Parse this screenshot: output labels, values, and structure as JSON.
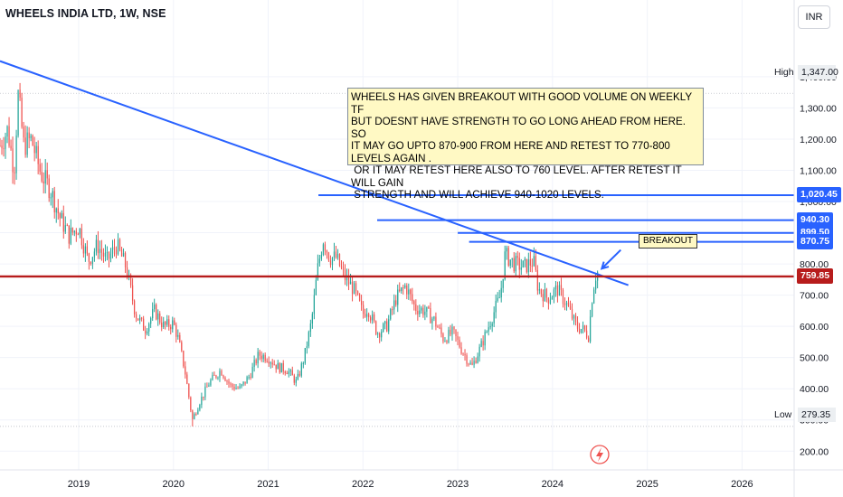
{
  "header": {
    "title": "WHEELS INDIA LTD, 1W, NSE",
    "currency": "INR"
  },
  "annotations": {
    "note": "WHEELS HAS GIVEN BREAKOUT WITH GOOD VOLUME ON WEEKLY TF\nBUT DOESNT HAVE STRENGTH TO GO LONG AHEAD FROM HERE. SO\nIT MAY GO UPTO 870-900 FROM HERE AND RETEST TO 770-800 LEVELS AGAIN .\n OR IT MAY RETEST HERE ALSO TO 760 LEVEL. AFTER RETEST IT WILL GAIN\n STRENGTH AND WILL ACHIEVE 940-1020 LEVELS.",
    "breakout_label": "BREAKOUT"
  },
  "price_scale": {
    "high_label": "High",
    "high_value": "1,347.00",
    "low_label": "Low",
    "low_value": "279.35",
    "tags": [
      {
        "value": 1020.45,
        "label": "1,020.45",
        "color": "#2962ff"
      },
      {
        "value": 940.3,
        "label": "940.30",
        "color": "#2962ff"
      },
      {
        "value": 899.5,
        "label": "899.50",
        "color": "#2962ff"
      },
      {
        "value": 870.75,
        "label": "870.75",
        "color": "#2962ff"
      },
      {
        "value": 759.85,
        "label": "759.85",
        "color": "#b71c1c"
      }
    ]
  },
  "chart_data": {
    "type": "candlestick",
    "x_type": "date",
    "y_ticks": [
      200,
      300,
      400,
      500,
      600,
      700,
      800,
      900,
      1000,
      1100,
      1200,
      1300,
      1400
    ],
    "y_tick_labels": [
      "200.00",
      "300.00",
      "400.00",
      "500.00",
      "600.00",
      "700.00",
      "800.00",
      "900.00",
      "1,000.00",
      "1,100.00",
      "1,200.00",
      "1,300.00",
      "1,400.00"
    ],
    "ylim": [
      140,
      1530
    ],
    "x_tick_labels": [
      "2019",
      "2020",
      "2021",
      "2022",
      "2023",
      "2024",
      "2025",
      "2026"
    ],
    "x_ticks": [
      2019.0,
      2020.0,
      2021.0,
      2022.0,
      2023.0,
      2024.0,
      2025.0,
      2026.0
    ],
    "xlim": [
      2018.17,
      2026.55
    ],
    "up_color": "#26a69a",
    "down_color": "#ef5350",
    "price_path": [
      [
        2018.17,
        1180
      ],
      [
        2018.25,
        1230
      ],
      [
        2018.32,
        1100
      ],
      [
        2018.36,
        1347
      ],
      [
        2018.42,
        1180
      ],
      [
        2018.5,
        1200
      ],
      [
        2018.6,
        1090
      ],
      [
        2018.7,
        1040
      ],
      [
        2018.8,
        950
      ],
      [
        2018.9,
        890
      ],
      [
        2019.0,
        920
      ],
      [
        2019.1,
        810
      ],
      [
        2019.2,
        860
      ],
      [
        2019.3,
        810
      ],
      [
        2019.4,
        860
      ],
      [
        2019.5,
        790
      ],
      [
        2019.6,
        640
      ],
      [
        2019.7,
        590
      ],
      [
        2019.8,
        650
      ],
      [
        2019.9,
        600
      ],
      [
        2020.0,
        610
      ],
      [
        2020.05,
        560
      ],
      [
        2020.12,
        460
      ],
      [
        2020.2,
        300
      ],
      [
        2020.28,
        360
      ],
      [
        2020.38,
        420
      ],
      [
        2020.5,
        460
      ],
      [
        2020.6,
        410
      ],
      [
        2020.7,
        400
      ],
      [
        2020.8,
        440
      ],
      [
        2020.9,
        510
      ],
      [
        2021.0,
        500
      ],
      [
        2021.1,
        470
      ],
      [
        2021.2,
        460
      ],
      [
        2021.3,
        420
      ],
      [
        2021.38,
        500
      ],
      [
        2021.46,
        620
      ],
      [
        2021.52,
        780
      ],
      [
        2021.58,
        880
      ],
      [
        2021.65,
        820
      ],
      [
        2021.72,
        820
      ],
      [
        2021.8,
        760
      ],
      [
        2021.9,
        720
      ],
      [
        2022.0,
        640
      ],
      [
        2022.05,
        660
      ],
      [
        2022.15,
        580
      ],
      [
        2022.25,
        600
      ],
      [
        2022.35,
        690
      ],
      [
        2022.45,
        730
      ],
      [
        2022.55,
        660
      ],
      [
        2022.65,
        650
      ],
      [
        2022.75,
        620
      ],
      [
        2022.85,
        560
      ],
      [
        2022.95,
        580
      ],
      [
        2023.05,
        520
      ],
      [
        2023.15,
        470
      ],
      [
        2023.25,
        540
      ],
      [
        2023.35,
        620
      ],
      [
        2023.45,
        700
      ],
      [
        2023.5,
        830
      ],
      [
        2023.6,
        800
      ],
      [
        2023.7,
        790
      ],
      [
        2023.8,
        810
      ],
      [
        2023.85,
        720
      ],
      [
        2023.95,
        690
      ],
      [
        2024.05,
        720
      ],
      [
        2024.15,
        670
      ],
      [
        2024.25,
        600
      ],
      [
        2024.32,
        590
      ],
      [
        2024.38,
        570
      ],
      [
        2024.42,
        700
      ],
      [
        2024.45,
        760
      ],
      [
        2024.48,
        775
      ]
    ],
    "high_point": {
      "x": 2018.36,
      "y": 1347.0
    },
    "low_point": {
      "x": 2020.2,
      "y": 279.35
    },
    "lines": [
      {
        "name": "descending trendline",
        "color": "#2962ff",
        "points": [
          [
            2018.17,
            1450
          ],
          [
            2024.8,
            732
          ]
        ]
      },
      {
        "name": "support",
        "color": "#b71c1c",
        "points": [
          [
            2018.17,
            759.85
          ],
          [
            2026.55,
            759.85
          ]
        ]
      },
      {
        "name": "target",
        "color": "#2962ff",
        "points": [
          [
            2021.53,
            1020.45
          ],
          [
            2026.55,
            1020.45
          ]
        ]
      },
      {
        "name": "target",
        "color": "#2962ff",
        "points": [
          [
            2022.15,
            940.3
          ],
          [
            2026.55,
            940.3
          ]
        ]
      },
      {
        "name": "target",
        "color": "#2962ff",
        "points": [
          [
            2023.0,
            899.5
          ],
          [
            2026.55,
            899.5
          ]
        ]
      },
      {
        "name": "target",
        "color": "#2962ff",
        "points": [
          [
            2023.12,
            870.75
          ],
          [
            2026.55,
            870.75
          ]
        ]
      }
    ],
    "arrow": {
      "from": [
        2024.72,
        845
      ],
      "to": [
        2024.52,
        785
      ],
      "color": "#2962ff"
    }
  }
}
